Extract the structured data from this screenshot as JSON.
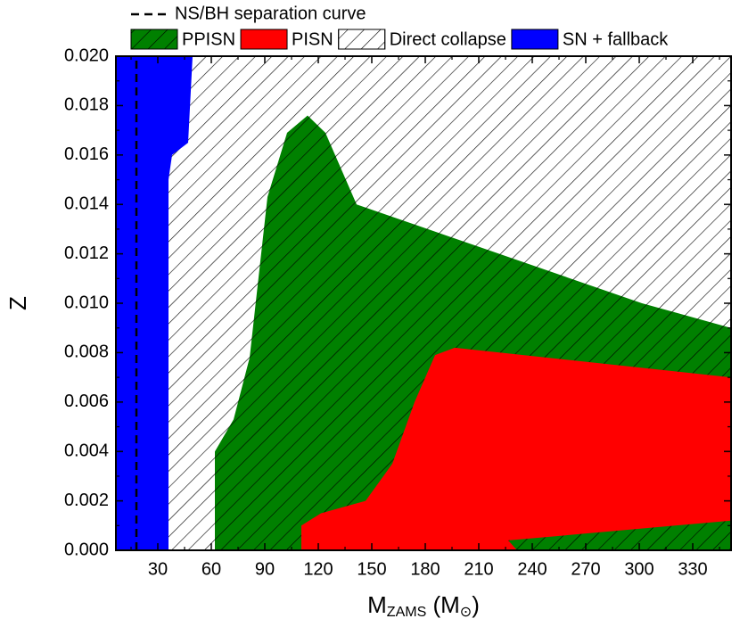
{
  "chart_data": {
    "type": "region",
    "ylabel": "Z",
    "xlabel": [
      "M",
      "ZAMS",
      " (M",
      "⊙",
      ")"
    ],
    "xlim": [
      6.5,
      351.5
    ],
    "ylim": [
      0,
      0.02
    ],
    "xticks": [
      30,
      60,
      90,
      120,
      150,
      180,
      210,
      240,
      270,
      300,
      330
    ],
    "xminorticks": [
      15,
      45,
      75,
      105,
      135,
      165,
      195,
      225,
      255,
      285,
      315,
      345
    ],
    "yticks": [
      {
        "value": 0,
        "label": "0.000"
      },
      {
        "value": 0.002,
        "label": "0.002"
      },
      {
        "value": 0.004,
        "label": "0.004"
      },
      {
        "value": 0.006,
        "label": "0.006"
      },
      {
        "value": 0.008,
        "label": "0.008"
      },
      {
        "value": 0.01,
        "label": "0.010"
      },
      {
        "value": 0.012,
        "label": "0.012"
      },
      {
        "value": 0.014,
        "label": "0.014"
      },
      {
        "value": 0.016,
        "label": "0.016"
      },
      {
        "value": 0.018,
        "label": "0.018"
      },
      {
        "value": 0.02,
        "label": "0.020"
      }
    ],
    "yminorticks": [
      0.001,
      0.003,
      0.005,
      0.007,
      0.009,
      0.011,
      0.013,
      0.015,
      0.017,
      0.019
    ],
    "series": [
      {
        "name": "NS/BH separation curve",
        "kind": "line",
        "dash": true,
        "color": "#000000",
        "x": [
          18,
          18
        ],
        "y": [
          0,
          0.02
        ]
      },
      {
        "name": "PPISN",
        "kind": "area",
        "hatch": true,
        "color": "#008000",
        "x": [
          62,
          62,
          72.5,
          81.5,
          91.5,
          102.5,
          114,
          124,
          141.5,
          301.5,
          351.5,
          351.5
        ],
        "y": [
          0,
          0.004,
          0.0053,
          0.0078,
          0.0143,
          0.0169,
          0.0176,
          0.0169,
          0.014,
          0.01,
          0.009,
          0
        ]
      },
      {
        "name": "PISN",
        "kind": "area",
        "hatch": false,
        "color": "#ff0000",
        "x": [
          110.5,
          110.5,
          121.5,
          146.5,
          161.5,
          174,
          185.5,
          196.5,
          351.5,
          351.5,
          226.5,
          231.5
        ],
        "y": [
          0,
          0.001,
          0.0015,
          0.002,
          0.0035,
          0.006,
          0.0079,
          0.0082,
          0.007,
          0.0012,
          0.0004,
          0
        ]
      },
      {
        "name": "Direct collapse",
        "kind": "area",
        "hatch": true,
        "color": "#ffffff",
        "x": [
          36,
          36,
          351.5,
          351.5
        ],
        "y": [
          0,
          0.02,
          0.02,
          0
        ]
      },
      {
        "name": "SN + fallback",
        "kind": "area",
        "hatch": false,
        "color": "#0000ff",
        "x": [
          6.5,
          6.5,
          49.5,
          47,
          38,
          36,
          36
        ],
        "y": [
          0,
          0.02,
          0.02,
          0.0165,
          0.016,
          0.015,
          0
        ]
      }
    ]
  }
}
